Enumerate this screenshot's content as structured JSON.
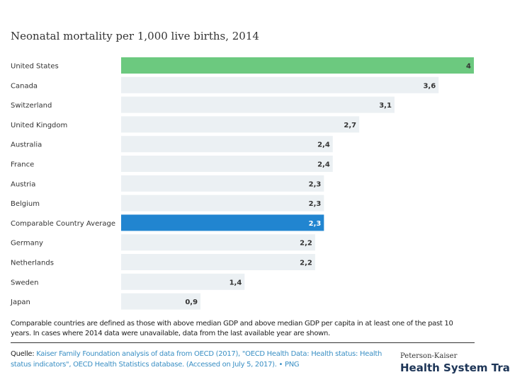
{
  "chart_data": {
    "type": "bar",
    "orientation": "horizontal",
    "title": "Neonatal mortality per 1,000 live births, 2014",
    "categories": [
      "United States",
      "Canada",
      "Switzerland",
      "United Kingdom",
      "Australia",
      "France",
      "Austria",
      "Belgium",
      "Comparable Country Average",
      "Germany",
      "Netherlands",
      "Sweden",
      "Japan"
    ],
    "values": [
      4,
      3.6,
      3.1,
      2.7,
      2.4,
      2.4,
      2.3,
      2.3,
      2.3,
      2.2,
      2.2,
      1.4,
      0.9
    ],
    "value_labels": [
      "4",
      "3,6",
      "3,1",
      "2,7",
      "2,4",
      "2,4",
      "2,3",
      "2,3",
      "2,3",
      "2,2",
      "2,2",
      "1,4",
      "0,9"
    ],
    "xlim": [
      0,
      4
    ],
    "grid": false,
    "colors": {
      "highlight_us": "#6cc97f",
      "highlight_avg": "#2185d0",
      "default": "#ebf0f3"
    }
  },
  "note": "Comparable countries are defined as those with above median GDP and above median GDP per capita in at least one of the past 10 years. In cases where 2014 data were unavailable, data from the last available year are shown.",
  "source": {
    "label": "Quelle:",
    "text": " Kaiser Family Foundation analysis of data from OECD (2017), \"OECD Health Data: Health status: Health status indicators\", OECD Health Statistics database. (Accessed on July 5, 2017).",
    "sep": " • ",
    "png": "PNG"
  },
  "logo": {
    "small": "Peterson-Kaiser",
    "big": "Health System Tracker"
  }
}
